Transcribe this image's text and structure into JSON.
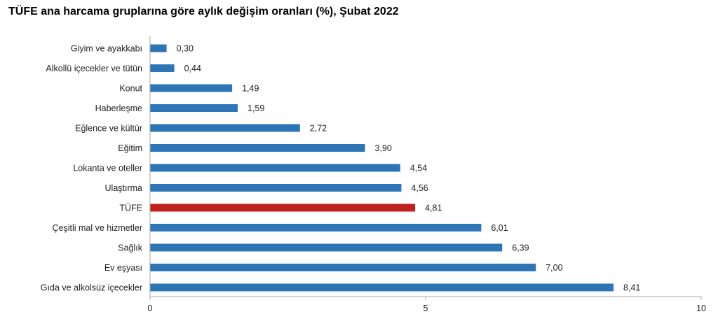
{
  "chart_data": {
    "type": "bar",
    "orientation": "horizontal",
    "title": "TÜFE ana harcama gruplarına göre aylık değişim oranları (%), Şubat 2022",
    "categories": [
      "Giyim ve ayakkabı",
      "Alkollü içecekler ve tütün",
      "Konut",
      "Haberleşme",
      "Eğlence ve kültür",
      "Eğitim",
      "Lokanta ve oteller",
      "Ulaştırma",
      "TÜFE",
      "Çeşitli mal ve hizmetler",
      "Sağlık",
      "Ev eşyası",
      "Gıda ve alkolsüz içecekler"
    ],
    "values": [
      0.3,
      0.44,
      1.49,
      1.59,
      2.72,
      3.9,
      4.54,
      4.56,
      4.81,
      6.01,
      6.39,
      7.0,
      8.41
    ],
    "value_labels": [
      "0,30",
      "0,44",
      "1,49",
      "1,59",
      "2,72",
      "3,90",
      "4,54",
      "4,56",
      "4,81",
      "6,01",
      "6,39",
      "7,00",
      "8,41"
    ],
    "highlight_category": "TÜFE",
    "xlim": [
      0,
      10
    ],
    "xticks": [
      0,
      5,
      10
    ],
    "xtick_labels": [
      "0",
      "5",
      "10"
    ],
    "grid": false,
    "legend": "none",
    "colors": {
      "bar": "#2e75b6",
      "highlight": "#c0201e",
      "axis": "#a6a6a6"
    }
  }
}
